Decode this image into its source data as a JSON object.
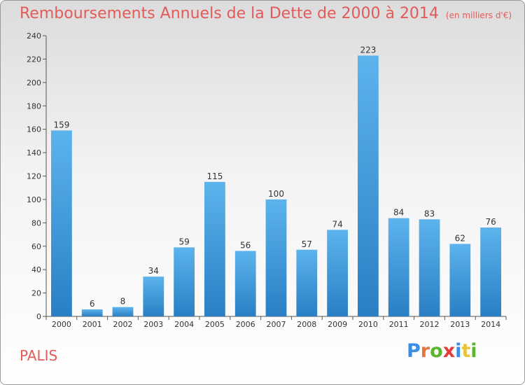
{
  "title": "Remboursements Annuels de la Dette de 2000 à 2014",
  "unit_note": "(en milliers d'€)",
  "town": "PALIS",
  "logo": {
    "text": "Proxiti",
    "letters": [
      {
        "ch": "P",
        "color": "#3a8ee6"
      },
      {
        "ch": "r",
        "color": "#e8743b"
      },
      {
        "ch": "o",
        "color": "#5bb531"
      },
      {
        "ch": "x",
        "color": "#e23c3c"
      },
      {
        "ch": "i",
        "color": "#3a8ee6"
      },
      {
        "ch": "t",
        "color": "#e8c43b"
      },
      {
        "ch": "i",
        "color": "#5bb531"
      }
    ]
  },
  "colors": {
    "bar_top": "#5db3ec",
    "bar_bottom": "#2a7fc4",
    "title": "#e35a5a"
  },
  "chart_data": {
    "type": "bar",
    "title": "Remboursements Annuels de la Dette de 2000 à 2014",
    "xlabel": "",
    "ylabel": "",
    "categories": [
      "2000",
      "2001",
      "2002",
      "2003",
      "2004",
      "2005",
      "2006",
      "2007",
      "2008",
      "2009",
      "2010",
      "2011",
      "2012",
      "2013",
      "2014"
    ],
    "values": [
      159,
      6,
      8,
      34,
      59,
      115,
      56,
      100,
      57,
      74,
      223,
      84,
      83,
      62,
      76
    ],
    "ylim": [
      0,
      240
    ],
    "yticks": [
      0,
      20,
      40,
      60,
      80,
      100,
      120,
      140,
      160,
      180,
      200,
      220,
      240
    ],
    "grid": false,
    "legend": "none"
  }
}
